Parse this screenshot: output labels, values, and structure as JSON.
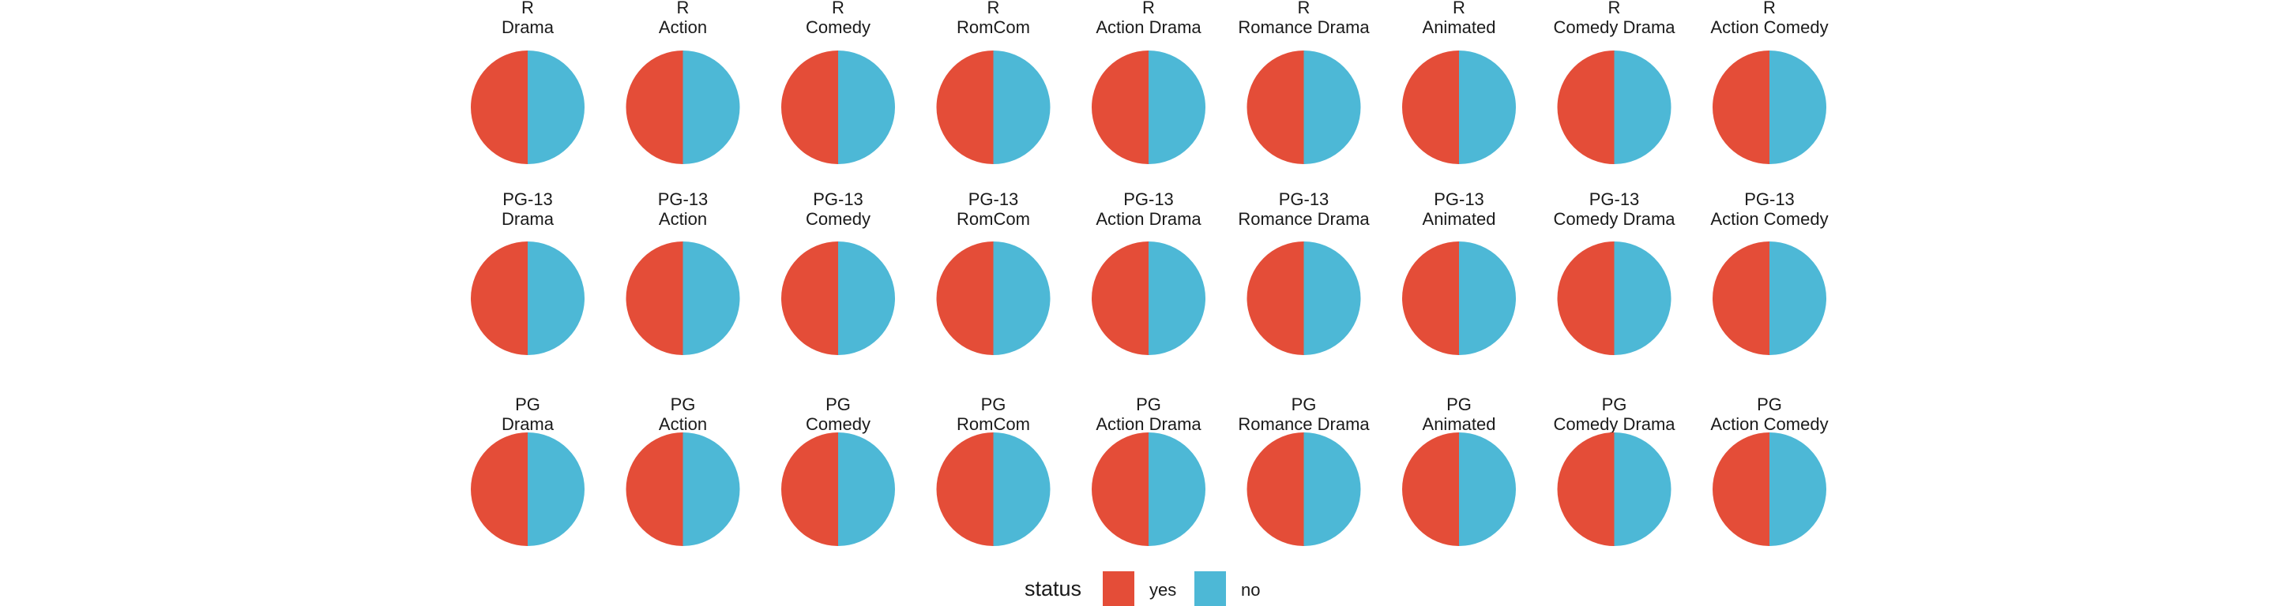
{
  "chart_data": {
    "type": "pie",
    "facet_rows": [
      "R",
      "PG-13",
      "PG"
    ],
    "facet_cols": [
      "Drama",
      "Action",
      "Comedy",
      "RomCom",
      "Action Drama",
      "Romance Drama",
      "Animated",
      "Comedy Drama",
      "Action Comedy"
    ],
    "series": [
      {
        "name": "yes",
        "color": "#E44D38"
      },
      {
        "name": "no",
        "color": "#4DB8D6"
      }
    ],
    "panels": [
      {
        "row": "R",
        "col": "Drama",
        "values": [
          50,
          50
        ]
      },
      {
        "row": "R",
        "col": "Action",
        "values": [
          50,
          50
        ]
      },
      {
        "row": "R",
        "col": "Comedy",
        "values": [
          50,
          50
        ]
      },
      {
        "row": "R",
        "col": "RomCom",
        "values": [
          50,
          50
        ]
      },
      {
        "row": "R",
        "col": "Action Drama",
        "values": [
          50,
          50
        ]
      },
      {
        "row": "R",
        "col": "Romance Drama",
        "values": [
          50,
          50
        ]
      },
      {
        "row": "R",
        "col": "Animated",
        "values": [
          50,
          50
        ]
      },
      {
        "row": "R",
        "col": "Comedy Drama",
        "values": [
          50,
          50
        ]
      },
      {
        "row": "R",
        "col": "Action Comedy",
        "values": [
          50,
          50
        ]
      },
      {
        "row": "PG-13",
        "col": "Drama",
        "values": [
          50,
          50
        ]
      },
      {
        "row": "PG-13",
        "col": "Action",
        "values": [
          50,
          50
        ]
      },
      {
        "row": "PG-13",
        "col": "Comedy",
        "values": [
          50,
          50
        ]
      },
      {
        "row": "PG-13",
        "col": "RomCom",
        "values": [
          50,
          50
        ]
      },
      {
        "row": "PG-13",
        "col": "Action Drama",
        "values": [
          50,
          50
        ]
      },
      {
        "row": "PG-13",
        "col": "Romance Drama",
        "values": [
          50,
          50
        ]
      },
      {
        "row": "PG-13",
        "col": "Animated",
        "values": [
          50,
          50
        ]
      },
      {
        "row": "PG-13",
        "col": "Comedy Drama",
        "values": [
          50,
          50
        ]
      },
      {
        "row": "PG-13",
        "col": "Action Comedy",
        "values": [
          50,
          50
        ]
      },
      {
        "row": "PG",
        "col": "Drama",
        "values": [
          50,
          50
        ]
      },
      {
        "row": "PG",
        "col": "Action",
        "values": [
          50,
          50
        ]
      },
      {
        "row": "PG",
        "col": "Comedy",
        "values": [
          50,
          50
        ]
      },
      {
        "row": "PG",
        "col": "RomCom",
        "values": [
          50,
          50
        ]
      },
      {
        "row": "PG",
        "col": "Action Drama",
        "values": [
          50,
          50
        ]
      },
      {
        "row": "PG",
        "col": "Romance Drama",
        "values": [
          50,
          50
        ]
      },
      {
        "row": "PG",
        "col": "Animated",
        "values": [
          50,
          50
        ]
      },
      {
        "row": "PG",
        "col": "Comedy Drama",
        "values": [
          50,
          50
        ]
      },
      {
        "row": "PG",
        "col": "Action Comedy",
        "values": [
          50,
          50
        ]
      }
    ],
    "legend": {
      "title": "status",
      "position": "bottom",
      "items": [
        "yes",
        "no"
      ]
    },
    "grid": false
  }
}
